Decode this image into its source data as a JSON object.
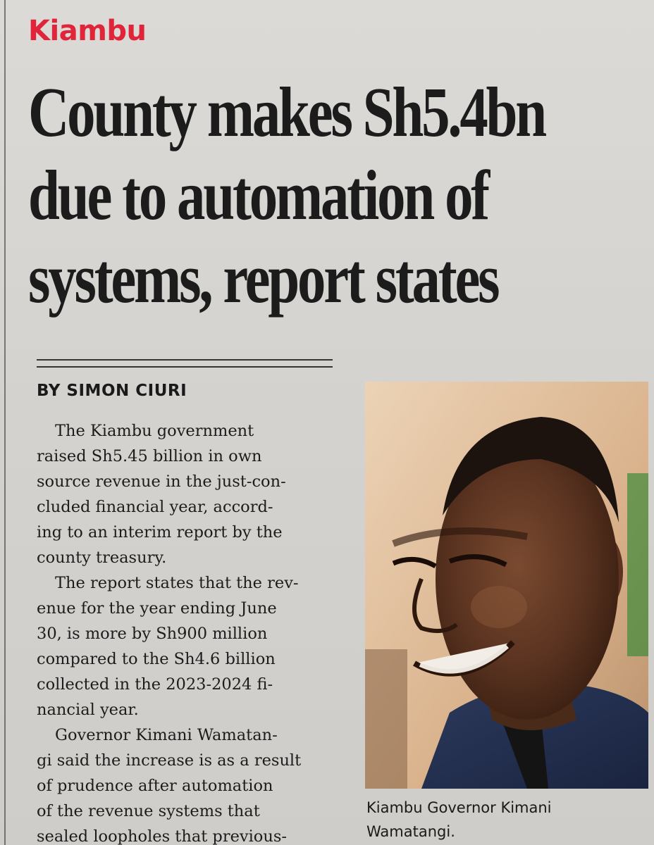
{
  "section": "Kiambu",
  "headline": {
    "lines": [
      "County makes Sh5.4bn",
      "due to automation of",
      "systems, report states"
    ]
  },
  "byline": "BY SIMON CIURI",
  "body": {
    "paragraphs": [
      {
        "lines": [
          "The Kiambu government",
          "raised Sh5.45 billion in own",
          "source revenue in the just-con-",
          "cluded financial year, accord-",
          "ing to an interim report by the",
          "county treasury."
        ]
      },
      {
        "lines": [
          "The report states that the rev-",
          "enue for the year ending June",
          "30, is more by Sh900 million",
          "compared to the Sh4.6 billion",
          "collected in the 2023-2024 fi-",
          "nancial year."
        ]
      },
      {
        "lines": [
          "Governor Kimani Wamatan-",
          "gi said the increase is as a result",
          "of prudence after automation",
          "of the revenue systems that",
          "sealed loopholes that previous-"
        ]
      }
    ]
  },
  "photo": {
    "caption_lines": [
      "Kiambu Governor Kimani",
      "Wamatangi."
    ]
  },
  "colors": {
    "section_red": "#e0243a",
    "paper": "#d8d6d2",
    "ink": "#1c1c1c"
  }
}
